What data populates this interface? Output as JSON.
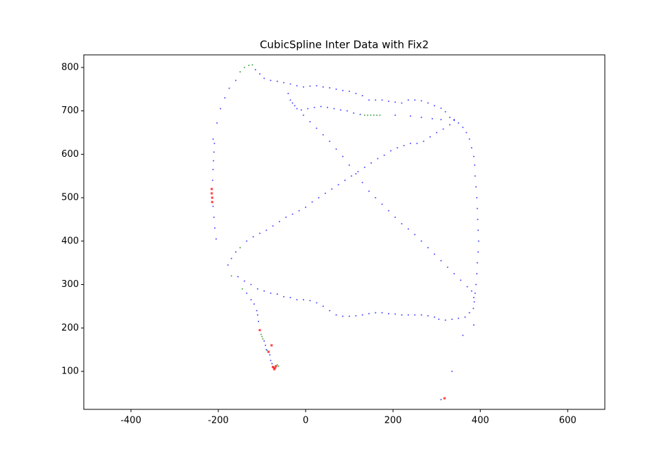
{
  "chart_data": {
    "type": "scatter",
    "title": "CubicSpline Inter Data with Fix2",
    "xlim": [
      -508,
      685
    ],
    "ylim": [
      12.5,
      829
    ],
    "xticks": [
      -400,
      -200,
      0,
      200,
      400,
      600
    ],
    "yticks": [
      100,
      200,
      300,
      400,
      500,
      600,
      700,
      800
    ],
    "series": [
      {
        "color": "#0000ff",
        "marker": "dot",
        "x": [
          -205,
          -208,
          -210,
          -212,
          -213,
          -212,
          -211,
          -210,
          -209,
          -212,
          -203,
          -195,
          -185,
          -175,
          -160,
          -115,
          -105,
          -95,
          -80,
          -65,
          -50,
          -35,
          -20,
          -5,
          10,
          25,
          40,
          55,
          70,
          85,
          100,
          115,
          130,
          145,
          160,
          175,
          190,
          205,
          220,
          235,
          250,
          265,
          280,
          295,
          310,
          320,
          330,
          340,
          350,
          360,
          368,
          375,
          380,
          385,
          387,
          388,
          390,
          392,
          393,
          394,
          395,
          396,
          395,
          393,
          392,
          390,
          388,
          386,
          384,
          375,
          365,
          350,
          335,
          320,
          305,
          295,
          280,
          265,
          250,
          235,
          220,
          205,
          190,
          175,
          160,
          145,
          130,
          115,
          100,
          85,
          70,
          55,
          40,
          25,
          10,
          -5,
          -20,
          -35,
          -50,
          -65,
          -80,
          -95,
          -110,
          -125,
          -140,
          -155,
          -178,
          -170,
          -160,
          -135,
          -120,
          -105,
          -90,
          -75,
          -60,
          -45,
          -30,
          -15,
          0,
          15,
          30,
          45,
          60,
          75,
          90,
          105,
          120,
          135,
          150,
          165,
          180,
          195,
          210,
          225,
          240,
          255,
          270,
          285,
          300,
          315,
          330,
          340,
          -40,
          -35,
          -25,
          -10,
          5,
          20,
          35,
          50,
          65,
          80,
          95,
          110,
          125,
          205,
          240,
          265,
          290,
          310,
          -30,
          -20,
          -5,
          10,
          25,
          40,
          55,
          70,
          85,
          100,
          115,
          130,
          145,
          160,
          175,
          190,
          205,
          220,
          235,
          250,
          265,
          280,
          295,
          310,
          325,
          340,
          355,
          370,
          380,
          385,
          -108,
          -110,
          -112,
          -118,
          -125,
          -135,
          -95,
          -92,
          -90,
          -82,
          -80,
          -77,
          -74,
          385,
          360,
          335,
          310
        ],
        "y": [
          405,
          430,
          455,
          480,
          540,
          565,
          585,
          605,
          625,
          635,
          672,
          705,
          730,
          752,
          770,
          795,
          785,
          775,
          770,
          768,
          765,
          762,
          758,
          755,
          757,
          758,
          755,
          753,
          750,
          747,
          745,
          740,
          735,
          725,
          725,
          725,
          722,
          720,
          718,
          725,
          725,
          723,
          718,
          712,
          706,
          698,
          685,
          678,
          672,
          662,
          650,
          635,
          615,
          595,
          575,
          550,
          525,
          500,
          475,
          450,
          425,
          400,
          375,
          350,
          325,
          300,
          280,
          260,
          245,
          235,
          225,
          222,
          220,
          218,
          220,
          225,
          228,
          230,
          230,
          230,
          230,
          232,
          233,
          235,
          235,
          233,
          230,
          228,
          227,
          227,
          230,
          240,
          250,
          258,
          263,
          265,
          265,
          270,
          272,
          278,
          280,
          285,
          290,
          300,
          308,
          318,
          345,
          360,
          375,
          400,
          410,
          418,
          425,
          435,
          445,
          455,
          462,
          470,
          478,
          490,
          500,
          510,
          520,
          530,
          540,
          550,
          560,
          570,
          580,
          590,
          598,
          608,
          615,
          620,
          625,
          625,
          630,
          640,
          650,
          658,
          668,
          680,
          740,
          725,
          712,
          702,
          705,
          708,
          710,
          708,
          705,
          702,
          700,
          695,
          692,
          690,
          688,
          685,
          682,
          680,
          718,
          705,
          690,
          675,
          660,
          645,
          630,
          612,
          595,
          575,
          555,
          535,
          515,
          500,
          485,
          470,
          455,
          440,
          428,
          415,
          400,
          385,
          370,
          355,
          340,
          325,
          310,
          295,
          285,
          270,
          215,
          230,
          240,
          255,
          265,
          280,
          170,
          160,
          150,
          138,
          125,
          118,
          110,
          207,
          183,
          100,
          35
        ]
      },
      {
        "color": "#008000",
        "marker": "dot",
        "x": [
          -102,
          -100,
          -98,
          -88,
          -65,
          -62,
          -150,
          -140,
          -130,
          -122,
          135,
          142,
          149,
          156,
          163,
          170,
          -150,
          -145,
          -170
        ],
        "y": [
          185,
          180,
          175,
          148,
          115,
          112,
          790,
          800,
          805,
          806,
          690,
          690,
          690,
          690,
          690,
          690,
          385,
          290,
          320
        ]
      },
      {
        "color": "#ff0000",
        "marker": "square",
        "x": [
          -215,
          -215,
          -214,
          -214,
          -105,
          -78,
          -85,
          -75,
          -72,
          -70,
          -68,
          318
        ],
        "y": [
          520,
          510,
          500,
          490,
          195,
          160,
          145,
          110,
          105,
          108,
          112,
          38
        ]
      }
    ]
  }
}
